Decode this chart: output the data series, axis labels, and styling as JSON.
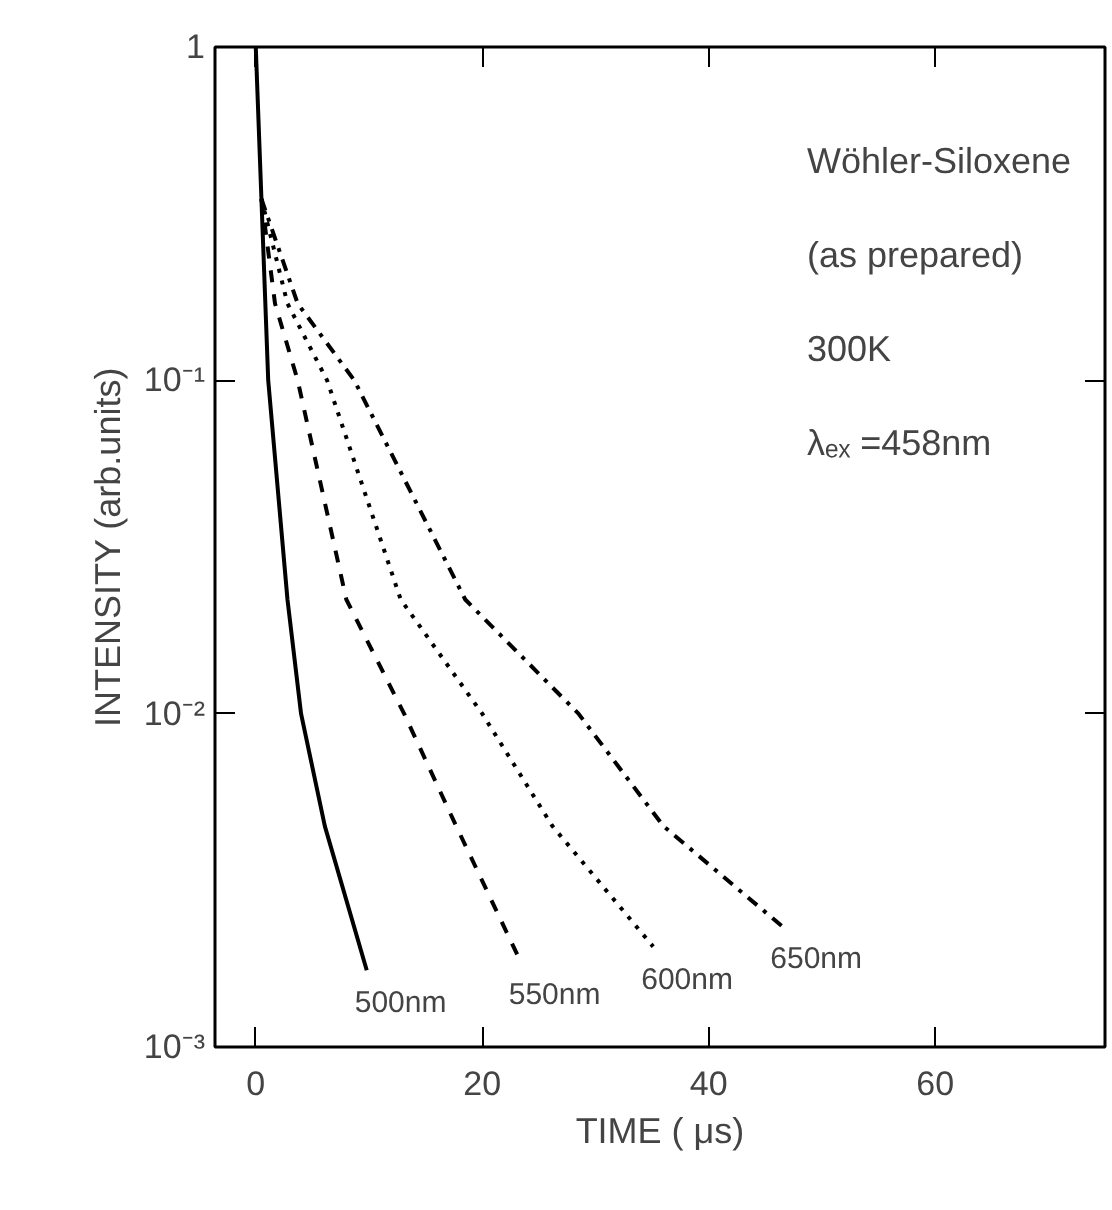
{
  "chart_data": {
    "type": "line",
    "xlabel": "TIME ( μs)",
    "ylabel": "INTENSITY (arb.units)",
    "log": "y",
    "xlim": [
      -3.6,
      75
    ],
    "xticks": [
      0,
      20,
      40,
      60
    ],
    "ylim": [
      0.001,
      1
    ],
    "yticks": [
      {
        "value": 0.001,
        "label": "10⁻³"
      },
      {
        "value": 0.01,
        "label": "10⁻²"
      },
      {
        "value": 0.1,
        "label": "10⁻¹"
      },
      {
        "value": 1,
        "label": "1"
      }
    ],
    "grid": false,
    "annotations": [
      "Wöhler-Siloxene",
      "(as prepared)",
      "300K",
      "λₑₓ =458nm"
    ],
    "series": [
      {
        "name": "500nm",
        "color": "#000000",
        "line_style": "solid",
        "x": [
          0,
          0.5,
          1.1,
          2.8,
          4.0,
          6.1,
          9.8
        ],
        "values": [
          1,
          0.35,
          0.1,
          0.022,
          0.01,
          0.0046,
          0.0017
        ]
      },
      {
        "name": "550nm",
        "color": "#000000",
        "line_style": "dashed",
        "x": [
          0.5,
          1.7,
          3.7,
          8.0,
          13.1,
          17.7,
          23.4
        ],
        "values": [
          0.35,
          0.17,
          0.1,
          0.022,
          0.01,
          0.0046,
          0.0018
        ]
      },
      {
        "name": "600nm",
        "color": "#000000",
        "line_style": "dotted",
        "x": [
          0.5,
          2.8,
          6.3,
          12.8,
          20.0,
          26.2,
          35.1
        ],
        "values": [
          0.35,
          0.17,
          0.1,
          0.022,
          0.01,
          0.0046,
          0.002
        ]
      },
      {
        "name": "650nm",
        "color": "#000000",
        "line_style": "dashdot",
        "x": [
          0.5,
          3.7,
          8.7,
          18.5,
          28.5,
          36.0,
          46.5
        ],
        "values": [
          0.35,
          0.17,
          0.1,
          0.022,
          0.01,
          0.0046,
          0.0023
        ]
      }
    ]
  }
}
